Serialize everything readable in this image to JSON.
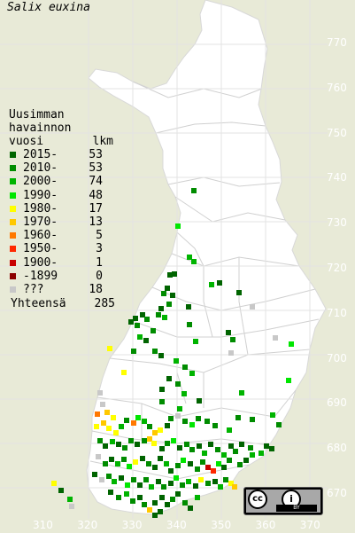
{
  "title": "Salix euxina",
  "legend": {
    "header_line1": "Uusimman",
    "header_line2": "havainnon",
    "header_col1": "vuosi",
    "header_col2": "lkm",
    "items": [
      {
        "label": "2015-",
        "count": "53",
        "color": "#006400"
      },
      {
        "label": "2010-",
        "count": "53",
        "color": "#008c00"
      },
      {
        "label": "2000-",
        "count": "74",
        "color": "#00b400"
      },
      {
        "label": "1990-",
        "count": "48",
        "color": "#00e600"
      },
      {
        "label": "1980-",
        "count": "17",
        "color": "#ffff00"
      },
      {
        "label": "1970-",
        "count": "13",
        "color": "#ffc800"
      },
      {
        "label": "1960-",
        "count": "5",
        "color": "#ff7800"
      },
      {
        "label": "1950-",
        "count": "3",
        "color": "#ff2800"
      },
      {
        "label": "1900-",
        "count": "1",
        "color": "#c80000"
      },
      {
        "label": "-1899",
        "count": "0",
        "color": "#8b0000"
      },
      {
        "label": "???",
        "count": "18",
        "color": "#c8c8c8"
      }
    ],
    "total_label": "Yhteensä",
    "total_count": "285"
  },
  "y_ticks": [
    "770",
    "760",
    "750",
    "740",
    "730",
    "720",
    "710",
    "700",
    "690",
    "680",
    "670"
  ],
  "x_ticks": [
    "310",
    "320",
    "330",
    "340",
    "350",
    "360",
    "370"
  ],
  "license": {
    "cc": "cc",
    "by": "BY",
    "person": "i"
  },
  "colors": {
    "background": "#e8ead7",
    "land": "#ffffff",
    "border": "#c8c8c8"
  }
}
